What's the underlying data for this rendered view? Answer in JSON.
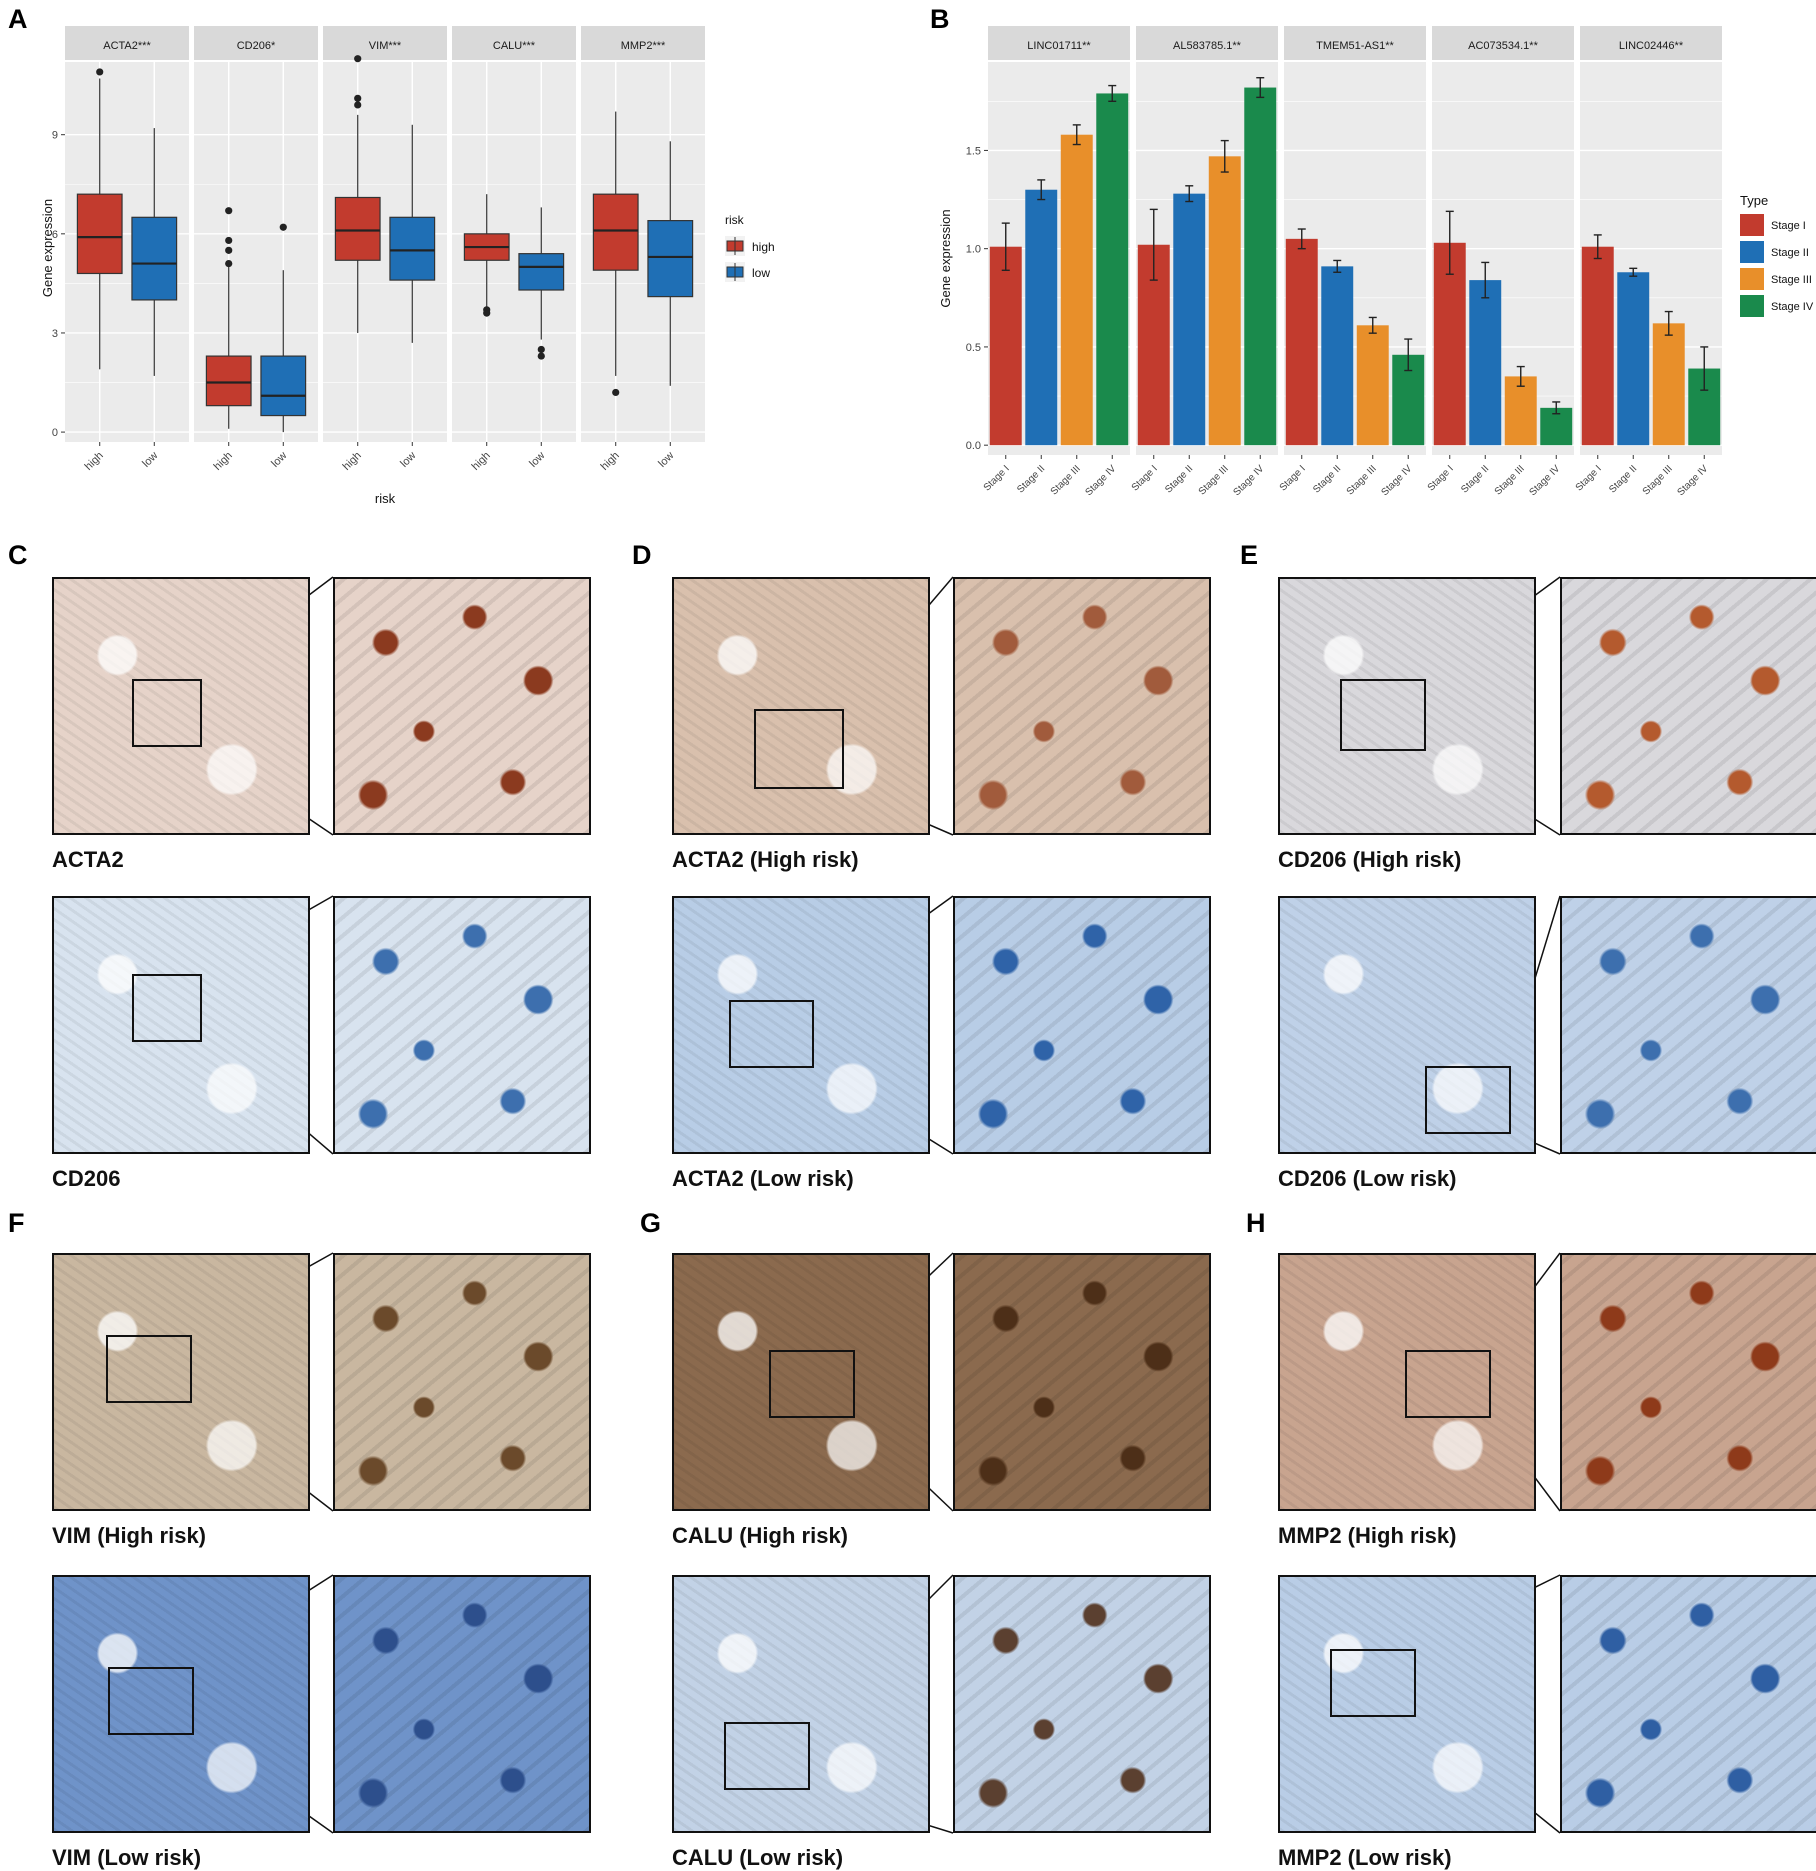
{
  "chart_data": [
    {
      "panel": "A",
      "type": "box",
      "xlabel": "risk",
      "ylabel": "Gene expression",
      "ylim": [
        -0.3,
        11.2
      ],
      "yticks": [
        0,
        3,
        6,
        9
      ],
      "categories": [
        "high",
        "low"
      ],
      "legend": {
        "title": "risk",
        "entries": [
          "high",
          "low"
        ],
        "placement": "right"
      },
      "colors": {
        "high": "#c23b2e",
        "low": "#1f6fb5"
      },
      "grid": true,
      "facets": [
        {
          "label": "ACTA2***",
          "boxes": [
            {
              "group": "high",
              "min": 1.9,
              "q1": 4.8,
              "median": 5.9,
              "q3": 7.2,
              "max": 10.7,
              "outliers": [
                10.9
              ]
            },
            {
              "group": "low",
              "min": 1.7,
              "q1": 4.0,
              "median": 5.1,
              "q3": 6.5,
              "max": 9.2,
              "outliers": []
            }
          ]
        },
        {
          "label": "CD206*",
          "boxes": [
            {
              "group": "high",
              "min": 0.1,
              "q1": 0.8,
              "median": 1.5,
              "q3": 2.3,
              "max": 5.0,
              "outliers": [
                5.1,
                5.5,
                5.8,
                6.7
              ]
            },
            {
              "group": "low",
              "min": 0.0,
              "q1": 0.5,
              "median": 1.1,
              "q3": 2.3,
              "max": 4.9,
              "outliers": [
                6.2
              ]
            }
          ]
        },
        {
          "label": "VIM***",
          "boxes": [
            {
              "group": "high",
              "min": 3.0,
              "q1": 5.2,
              "median": 6.1,
              "q3": 7.1,
              "max": 9.6,
              "outliers": [
                9.9,
                10.1,
                11.3
              ]
            },
            {
              "group": "low",
              "min": 2.7,
              "q1": 4.6,
              "median": 5.5,
              "q3": 6.5,
              "max": 9.3,
              "outliers": []
            }
          ]
        },
        {
          "label": "CALU***",
          "boxes": [
            {
              "group": "high",
              "min": 3.8,
              "q1": 5.2,
              "median": 5.6,
              "q3": 6.0,
              "max": 7.2,
              "outliers": [
                3.6,
                3.7
              ]
            },
            {
              "group": "low",
              "min": 2.8,
              "q1": 4.3,
              "median": 5.0,
              "q3": 5.4,
              "max": 6.8,
              "outliers": [
                2.3,
                2.5
              ]
            }
          ]
        },
        {
          "label": "MMP2***",
          "boxes": [
            {
              "group": "high",
              "min": 1.7,
              "q1": 4.9,
              "median": 6.1,
              "q3": 7.2,
              "max": 9.7,
              "outliers": [
                1.2
              ]
            },
            {
              "group": "low",
              "min": 1.4,
              "q1": 4.1,
              "median": 5.3,
              "q3": 6.4,
              "max": 8.8,
              "outliers": []
            }
          ]
        }
      ]
    },
    {
      "panel": "B",
      "type": "bar",
      "ylabel": "Gene expression",
      "ylim": [
        -0.05,
        1.95
      ],
      "yticks": [
        "0.0",
        "0.5",
        "1.0",
        "1.5"
      ],
      "categories": [
        "Stage I",
        "Stage II",
        "Stage III",
        "Stage IV"
      ],
      "legend": {
        "title": "Type",
        "entries": [
          "Stage I",
          "Stage II",
          "Stage III",
          "Stage IV"
        ],
        "placement": "right"
      },
      "colors": {
        "Stage I": "#c23b2e",
        "Stage II": "#1f6fb5",
        "Stage III": "#e88f2a",
        "Stage IV": "#1a8a4c"
      },
      "grid": true,
      "facets": [
        {
          "label": "LINC01711**",
          "values": [
            1.01,
            1.3,
            1.58,
            1.79
          ],
          "errors": [
            0.12,
            0.05,
            0.05,
            0.04
          ]
        },
        {
          "label": "AL583785.1**",
          "values": [
            1.02,
            1.28,
            1.47,
            1.82
          ],
          "errors": [
            0.18,
            0.04,
            0.08,
            0.05
          ]
        },
        {
          "label": "TMEM51-AS1**",
          "values": [
            1.05,
            0.91,
            0.61,
            0.46
          ],
          "errors": [
            0.05,
            0.03,
            0.04,
            0.08
          ]
        },
        {
          "label": "AC073534.1**",
          "values": [
            1.03,
            0.84,
            0.35,
            0.19
          ],
          "errors": [
            0.16,
            0.09,
            0.05,
            0.03
          ]
        },
        {
          "label": "LINC02446**",
          "values": [
            1.01,
            0.88,
            0.62,
            0.39
          ],
          "errors": [
            0.06,
            0.02,
            0.06,
            0.11
          ]
        }
      ]
    }
  ],
  "panels": {
    "a": "A",
    "b": "B",
    "c": "C",
    "d": "D",
    "e": "E",
    "f": "F",
    "g": "G",
    "h": "H"
  },
  "ihc_panels": [
    {
      "panel": "C",
      "top_caption": "ACTA2",
      "bottom_caption": "CD206"
    },
    {
      "panel": "D",
      "top_caption": "ACTA2 (High risk)",
      "bottom_caption": "ACTA2 (Low risk)"
    },
    {
      "panel": "E",
      "top_caption": "CD206 (High risk)",
      "bottom_caption": "CD206 (Low risk)"
    },
    {
      "panel": "F",
      "top_caption": "VIM (High risk)",
      "bottom_caption": "VIM (Low risk)"
    },
    {
      "panel": "G",
      "top_caption": "CALU (High risk)",
      "bottom_caption": "CALU (Low risk)"
    },
    {
      "panel": "H",
      "top_caption": "MMP2 (High risk)",
      "bottom_caption": "MMP2 (Low risk)"
    }
  ],
  "colors": {
    "panel_bg": "#ebebeb",
    "strip_bg": "#d9d9d9",
    "grid": "#ffffff",
    "brown_stain": "#9b5a3a",
    "hematoxylin": "#5b8cc8"
  }
}
